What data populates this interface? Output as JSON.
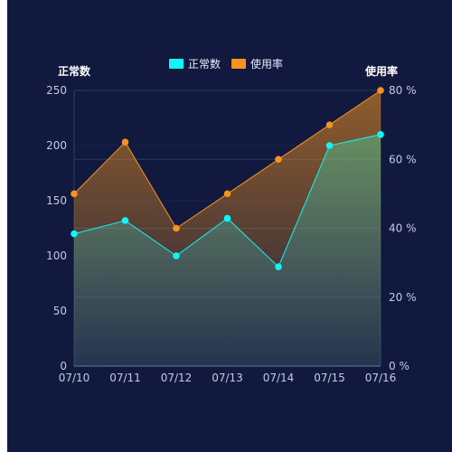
{
  "chart_data": {
    "type": "line",
    "title": "",
    "categories": [
      "07/10",
      "07/11",
      "07/12",
      "07/13",
      "07/14",
      "07/15",
      "07/16"
    ],
    "series": [
      {
        "name": "正常数",
        "axis": "left",
        "color": "#10f5f7",
        "values": [
          120,
          132,
          100,
          134,
          90,
          200,
          210
        ]
      },
      {
        "name": "使用率",
        "axis": "right",
        "color": "#f7931e",
        "values": [
          50,
          65,
          40,
          50,
          60,
          70,
          80
        ]
      }
    ],
    "y_left": {
      "label": "正常数",
      "ylim": [
        0,
        250
      ],
      "ticks": [
        "0",
        "50",
        "100",
        "150",
        "200",
        "250"
      ]
    },
    "y_right": {
      "label": "使用率",
      "ylim": [
        0,
        80
      ],
      "ticks": [
        "0 %",
        "20 %",
        "40 %",
        "60 %",
        "80 %"
      ]
    },
    "legend": "top-center",
    "grid": true,
    "area_fill": true
  },
  "colors": {
    "background": "#111a3e",
    "grid": "#26386b",
    "axis_text": "#c4cae0"
  }
}
